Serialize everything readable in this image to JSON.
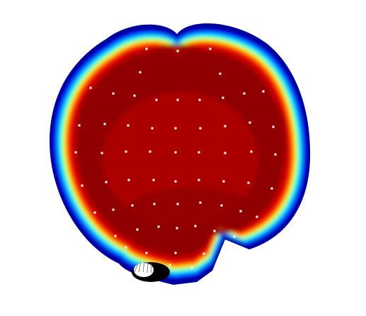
{
  "figure": {
    "kind": "scalp-topography-heatmap",
    "colormap": [
      "#000090",
      "#0000ff",
      "#00b0ff",
      "#00ffff",
      "#80ff80",
      "#ffff00",
      "#ff9000",
      "#ff2000",
      "#c80000",
      "#900000"
    ],
    "background_color": "#ffffff",
    "electrode_color": "#ffffff",
    "electrode_count": 64,
    "has_nose_marker": true
  }
}
